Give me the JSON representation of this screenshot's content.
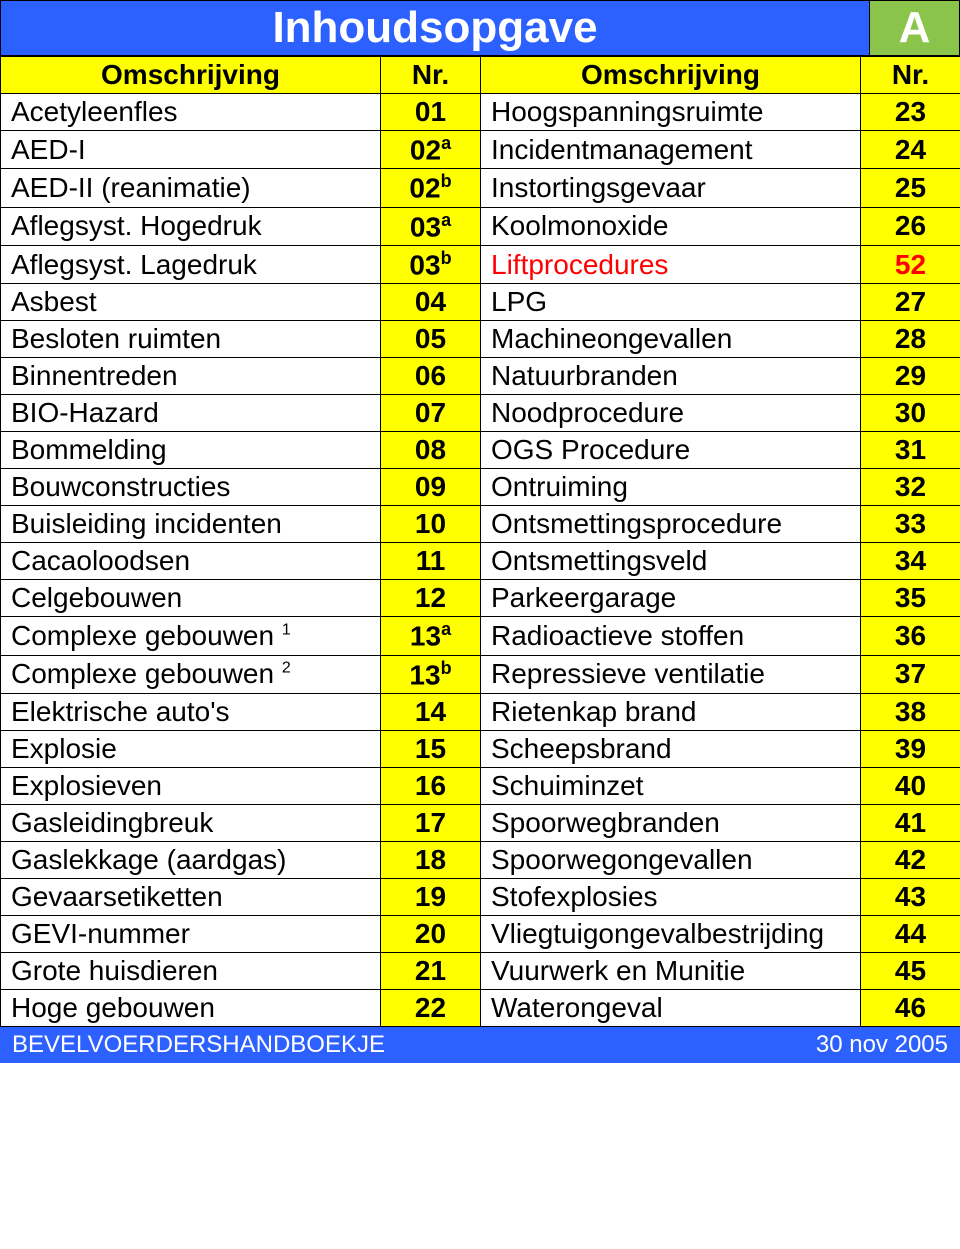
{
  "title": {
    "main": "Inhoudsopgave",
    "badge": "A",
    "main_bg": "#2d61ff",
    "main_color": "#ffffff",
    "badge_bg": "#8bc44a",
    "badge_color": "#ffffff"
  },
  "header": {
    "left_desc": "Omschrijving",
    "left_nr": "Nr.",
    "right_desc": "Omschrijving",
    "right_nr": "Nr.",
    "bg": "#ffff00",
    "color": "#000000"
  },
  "cells": {
    "desc_color": "#000000",
    "nr_bg": "#ffff00",
    "nr_color": "#000000",
    "highlight_color": "#ff0000"
  },
  "rows": [
    {
      "ld": "Acetyleenfles",
      "ls": "",
      "ln": "01",
      "lsup": "",
      "rd": "Hoogspanningsruimte",
      "rs": "",
      "rn": "23",
      "rsup": "",
      "hl": false
    },
    {
      "ld": "AED-I",
      "ls": "",
      "ln": "02",
      "lsup": "a",
      "rd": "Incidentmanagement",
      "rs": "",
      "rn": "24",
      "rsup": "",
      "hl": false
    },
    {
      "ld": "AED-II (reanimatie)",
      "ls": "",
      "ln": "02",
      "lsup": "b",
      "rd": "Instortingsgevaar",
      "rs": "",
      "rn": "25",
      "rsup": "",
      "hl": false
    },
    {
      "ld": "Aflegsyst. Hogedruk",
      "ls": "",
      "ln": "03",
      "lsup": "a",
      "rd": "Koolmonoxide",
      "rs": "",
      "rn": "26",
      "rsup": "",
      "hl": false
    },
    {
      "ld": "Aflegsyst. Lagedruk",
      "ls": "",
      "ln": "03",
      "lsup": "b",
      "rd": "Liftprocedures",
      "rs": "",
      "rn": "52",
      "rsup": "",
      "hl": true
    },
    {
      "ld": "Asbest",
      "ls": "",
      "ln": "04",
      "lsup": "",
      "rd": "LPG",
      "rs": "",
      "rn": "27",
      "rsup": "",
      "hl": false
    },
    {
      "ld": "Besloten ruimten",
      "ls": "",
      "ln": "05",
      "lsup": "",
      "rd": "Machineongevallen",
      "rs": "",
      "rn": "28",
      "rsup": "",
      "hl": false
    },
    {
      "ld": "Binnentreden",
      "ls": "",
      "ln": "06",
      "lsup": "",
      "rd": "Natuurbranden",
      "rs": "",
      "rn": "29",
      "rsup": "",
      "hl": false
    },
    {
      "ld": "BIO-Hazard",
      "ls": "",
      "ln": "07",
      "lsup": "",
      "rd": "Noodprocedure",
      "rs": "",
      "rn": "30",
      "rsup": "",
      "hl": false
    },
    {
      "ld": "Bommelding",
      "ls": "",
      "ln": "08",
      "lsup": "",
      "rd": "OGS Procedure",
      "rs": "",
      "rn": "31",
      "rsup": "",
      "hl": false
    },
    {
      "ld": "Bouwconstructies",
      "ls": "",
      "ln": "09",
      "lsup": "",
      "rd": "Ontruiming",
      "rs": "",
      "rn": "32",
      "rsup": "",
      "hl": false
    },
    {
      "ld": "Buisleiding incidenten",
      "ls": "",
      "ln": "10",
      "lsup": "",
      "rd": "Ontsmettingsprocedure",
      "rs": "",
      "rn": "33",
      "rsup": "",
      "hl": false
    },
    {
      "ld": "Cacaoloodsen",
      "ls": "",
      "ln": "11",
      "lsup": "",
      "rd": "Ontsmettingsveld",
      "rs": "",
      "rn": "34",
      "rsup": "",
      "hl": false
    },
    {
      "ld": "Celgebouwen",
      "ls": "",
      "ln": "12",
      "lsup": "",
      "rd": "Parkeergarage",
      "rs": "",
      "rn": "35",
      "rsup": "",
      "hl": false
    },
    {
      "ld": "Complexe gebouwen",
      "ls": "1",
      "ln": "13",
      "lsup": "a",
      "rd": "Radioactieve stoffen",
      "rs": "",
      "rn": "36",
      "rsup": "",
      "hl": false
    },
    {
      "ld": "Complexe gebouwen",
      "ls": "2",
      "ln": "13",
      "lsup": "b",
      "rd": "Repressieve ventilatie",
      "rs": "",
      "rn": "37",
      "rsup": "",
      "hl": false
    },
    {
      "ld": "Elektrische auto's",
      "ls": "",
      "ln": "14",
      "lsup": "",
      "rd": "Rietenkap brand",
      "rs": "",
      "rn": "38",
      "rsup": "",
      "hl": false
    },
    {
      "ld": "Explosie",
      "ls": "",
      "ln": "15",
      "lsup": "",
      "rd": "Scheepsbrand",
      "rs": "",
      "rn": "39",
      "rsup": "",
      "hl": false
    },
    {
      "ld": "Explosieven",
      "ls": "",
      "ln": "16",
      "lsup": "",
      "rd": "Schuiminzet",
      "rs": "",
      "rn": "40",
      "rsup": "",
      "hl": false
    },
    {
      "ld": "Gasleidingbreuk",
      "ls": "",
      "ln": "17",
      "lsup": "",
      "rd": "Spoorwegbranden",
      "rs": "",
      "rn": "41",
      "rsup": "",
      "hl": false
    },
    {
      "ld": "Gaslekkage (aardgas)",
      "ls": "",
      "ln": "18",
      "lsup": "",
      "rd": "Spoorwegongevallen",
      "rs": "",
      "rn": "42",
      "rsup": "",
      "hl": false
    },
    {
      "ld": "Gevaarsetiketten",
      "ls": "",
      "ln": "19",
      "lsup": "",
      "rd": "Stofexplosies",
      "rs": "",
      "rn": "43",
      "rsup": "",
      "hl": false
    },
    {
      "ld": "GEVI-nummer",
      "ls": "",
      "ln": "20",
      "lsup": "",
      "rd": "Vliegtuigongevalbestrijding",
      "rs": "",
      "rn": "44",
      "rsup": "",
      "hl": false
    },
    {
      "ld": "Grote huisdieren",
      "ls": "",
      "ln": "21",
      "lsup": "",
      "rd": "Vuurwerk en Munitie",
      "rs": "",
      "rn": "45",
      "rsup": "",
      "hl": false
    },
    {
      "ld": "Hoge gebouwen",
      "ls": "",
      "ln": "22",
      "lsup": "",
      "rd": "Waterongeval",
      "rs": "",
      "rn": "46",
      "rsup": "",
      "hl": false
    }
  ],
  "footer": {
    "left": "BEVELVOERDERSHANDBOEKJE",
    "right": "30 nov 2005",
    "bg": "#2d61ff",
    "color": "#ffffff"
  }
}
